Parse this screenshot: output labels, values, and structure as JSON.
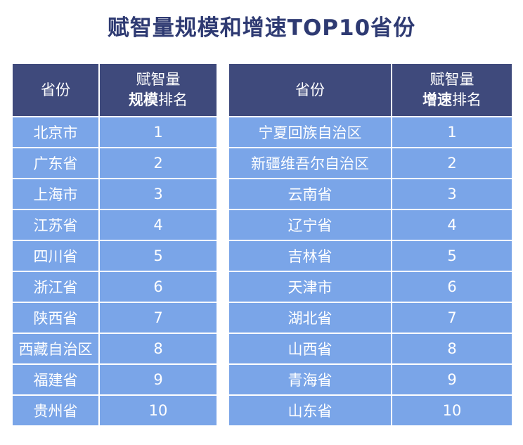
{
  "title": "赋智量规模和增速TOP10省份",
  "tables": [
    {
      "col1_header": "省份",
      "col2_header_line1": "赋智量",
      "col2_header_bold": "规模",
      "col2_header_tail": "排名",
      "rows": [
        {
          "province": "北京市",
          "rank": "1"
        },
        {
          "province": "广东省",
          "rank": "2"
        },
        {
          "province": "上海市",
          "rank": "3"
        },
        {
          "province": "江苏省",
          "rank": "4"
        },
        {
          "province": "四川省",
          "rank": "5"
        },
        {
          "province": "浙江省",
          "rank": "6"
        },
        {
          "province": "陕西省",
          "rank": "7"
        },
        {
          "province": "西藏自治区",
          "rank": "8"
        },
        {
          "province": "福建省",
          "rank": "9"
        },
        {
          "province": "贵州省",
          "rank": "10"
        }
      ]
    },
    {
      "col1_header": "省份",
      "col2_header_line1": "赋智量",
      "col2_header_bold": "增速",
      "col2_header_tail": "排名",
      "rows": [
        {
          "province": "宁夏回族自治区",
          "rank": "1"
        },
        {
          "province": "新疆维吾尔自治区",
          "rank": "2"
        },
        {
          "province": "云南省",
          "rank": "3"
        },
        {
          "province": "辽宁省",
          "rank": "4"
        },
        {
          "province": "吉林省",
          "rank": "5"
        },
        {
          "province": "天津市",
          "rank": "6"
        },
        {
          "province": "湖北省",
          "rank": "7"
        },
        {
          "province": "山西省",
          "rank": "8"
        },
        {
          "province": "青海省",
          "rank": "9"
        },
        {
          "province": "山东省",
          "rank": "10"
        }
      ]
    }
  ],
  "chart_data": {
    "type": "table",
    "title": "赋智量规模和增速TOP10省份",
    "tables": [
      {
        "columns": [
          "省份",
          "赋智量规模排名"
        ],
        "rows": [
          [
            "北京市",
            1
          ],
          [
            "广东省",
            2
          ],
          [
            "上海市",
            3
          ],
          [
            "江苏省",
            4
          ],
          [
            "四川省",
            5
          ],
          [
            "浙江省",
            6
          ],
          [
            "陕西省",
            7
          ],
          [
            "西藏自治区",
            8
          ],
          [
            "福建省",
            9
          ],
          [
            "贵州省",
            10
          ]
        ]
      },
      {
        "columns": [
          "省份",
          "赋智量增速排名"
        ],
        "rows": [
          [
            "宁夏回族自治区",
            1
          ],
          [
            "新疆维吾尔自治区",
            2
          ],
          [
            "云南省",
            3
          ],
          [
            "辽宁省",
            4
          ],
          [
            "吉林省",
            5
          ],
          [
            "天津市",
            6
          ],
          [
            "湖北省",
            7
          ],
          [
            "山西省",
            8
          ],
          [
            "青海省",
            9
          ],
          [
            "山东省",
            10
          ]
        ]
      }
    ]
  },
  "colors": {
    "title": "#2e3a72",
    "header_bg": "#3f4a7c",
    "cell_bg": "#7aa5e8",
    "text_light": "#ffffff"
  }
}
